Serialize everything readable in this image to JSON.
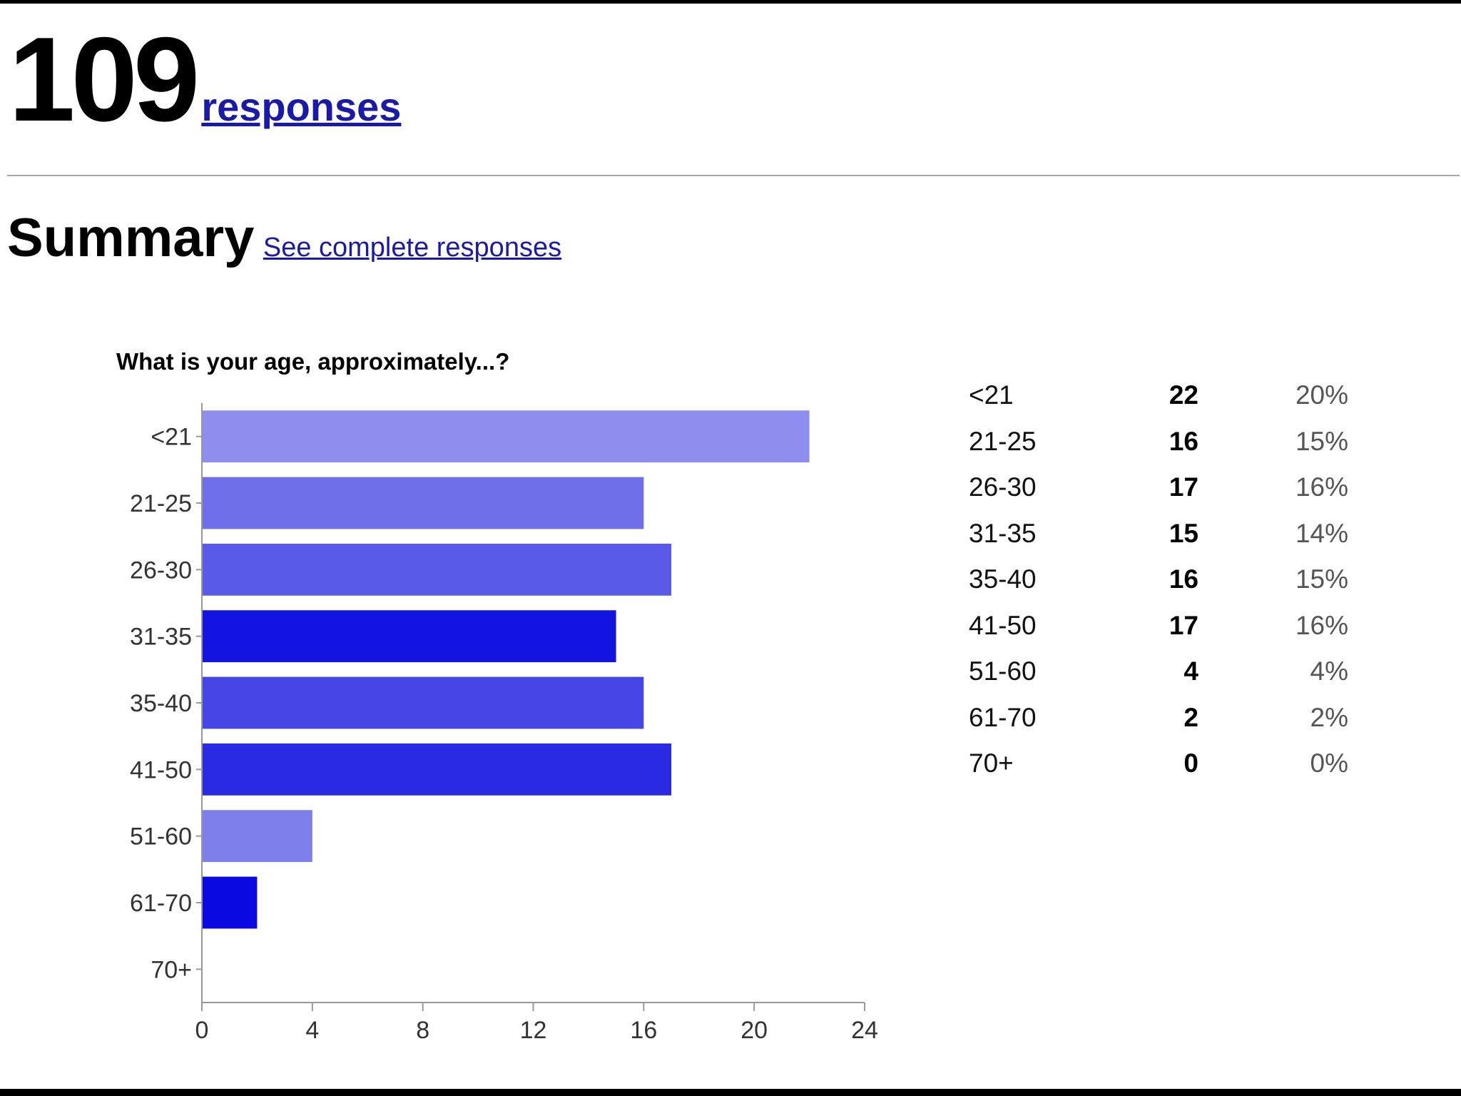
{
  "header": {
    "response_count": "109",
    "responses_link": "responses"
  },
  "summary": {
    "title": "Summary",
    "complete_link": "See complete responses"
  },
  "question": {
    "title": "What is your age, approximately...?"
  },
  "chart_data": {
    "type": "bar",
    "orientation": "horizontal",
    "title": "What is your age, approximately...?",
    "categories": [
      "<21",
      "21-25",
      "26-30",
      "31-35",
      "35-40",
      "41-50",
      "51-60",
      "61-70",
      "70+"
    ],
    "values": [
      22,
      16,
      17,
      15,
      16,
      17,
      4,
      2,
      0
    ],
    "colors": [
      "#8e8eee",
      "#6f6fea",
      "#5a5ae8",
      "#1414e0",
      "#4646e6",
      "#2a2ae2",
      "#7f7fec",
      "#0a0ae0",
      "#ffffff"
    ],
    "xlim": [
      0,
      24
    ],
    "xticks": [
      "0",
      "4",
      "8",
      "12",
      "16",
      "20",
      "24"
    ],
    "xlabel": "",
    "ylabel": "",
    "grid": false,
    "legend": "none"
  },
  "table": {
    "rows": [
      {
        "label": "<21",
        "count": "22",
        "percent": "20%"
      },
      {
        "label": "21-25",
        "count": "16",
        "percent": "15%"
      },
      {
        "label": "26-30",
        "count": "17",
        "percent": "16%"
      },
      {
        "label": "31-35",
        "count": "15",
        "percent": "14%"
      },
      {
        "label": "35-40",
        "count": "16",
        "percent": "15%"
      },
      {
        "label": "41-50",
        "count": "17",
        "percent": "16%"
      },
      {
        "label": "51-60",
        "count": "4",
        "percent": "4%"
      },
      {
        "label": "61-70",
        "count": "2",
        "percent": "2%"
      },
      {
        "label": "70+",
        "count": "0",
        "percent": "0%"
      }
    ]
  }
}
